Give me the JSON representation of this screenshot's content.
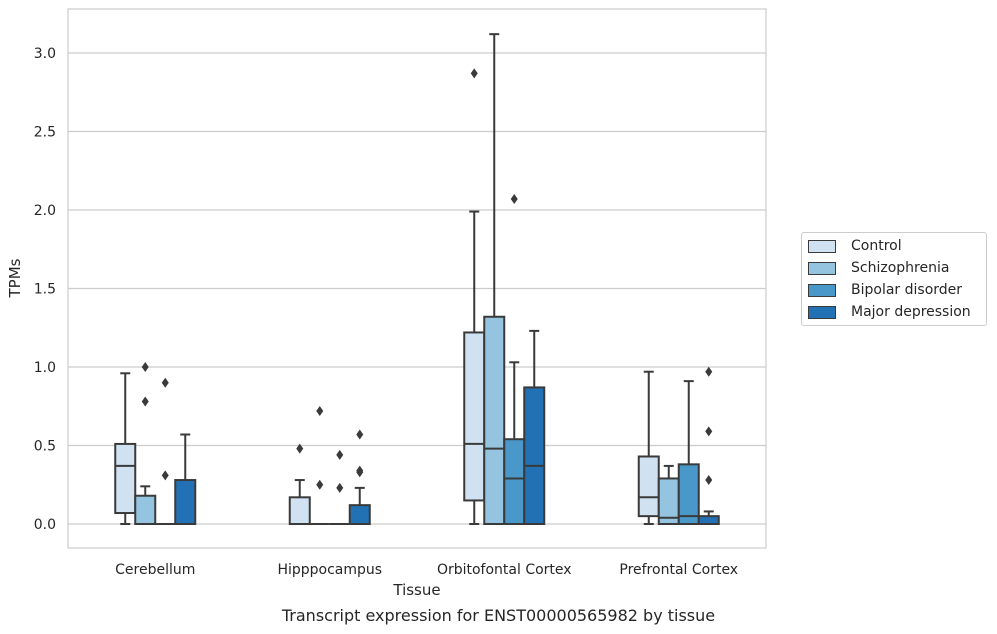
{
  "chart_data": {
    "type": "box",
    "title": "Transcript expression for ENST00000565982 by tissue",
    "xlabel": "Tissue",
    "ylabel": "TPMs",
    "ylim": [
      -0.15,
      3.3
    ],
    "yticks": [
      "0.0",
      "0.5",
      "1.0",
      "1.5",
      "2.0",
      "2.5",
      "3.0"
    ],
    "grid": true,
    "legend_position": "right",
    "categories": [
      "Cerebellum",
      "Hipppocampus",
      "Orbitofontal Cortex",
      "Prefrontal Cortex"
    ],
    "series": [
      {
        "name": "Control",
        "color": "#d0e1f2",
        "boxes": [
          {
            "whislo": 0.0,
            "q1": 0.07,
            "med": 0.37,
            "q3": 0.51,
            "whishi": 0.96,
            "fliers": []
          },
          {
            "whislo": 0.0,
            "q1": 0.0,
            "med": 0.0,
            "q3": 0.17,
            "whishi": 0.28,
            "fliers": [
              0.48
            ]
          },
          {
            "whislo": 0.0,
            "q1": 0.15,
            "med": 0.51,
            "q3": 1.22,
            "whishi": 1.99,
            "fliers": [
              2.87
            ]
          },
          {
            "whislo": 0.0,
            "q1": 0.05,
            "med": 0.17,
            "q3": 0.43,
            "whishi": 0.97,
            "fliers": []
          }
        ]
      },
      {
        "name": "Schizophrenia",
        "color": "#94c4df",
        "boxes": [
          {
            "whislo": 0.0,
            "q1": 0.0,
            "med": 0.0,
            "q3": 0.18,
            "whishi": 0.24,
            "fliers": [
              0.78,
              1.0
            ]
          },
          {
            "whislo": 0.0,
            "q1": 0.0,
            "med": 0.0,
            "q3": 0.0,
            "whishi": 0.0,
            "fliers": [
              0.25,
              0.72
            ]
          },
          {
            "whislo": 0.0,
            "q1": 0.0,
            "med": 0.48,
            "q3": 1.32,
            "whishi": 3.12,
            "fliers": []
          },
          {
            "whislo": 0.0,
            "q1": 0.0,
            "med": 0.04,
            "q3": 0.29,
            "whishi": 0.37,
            "fliers": []
          }
        ]
      },
      {
        "name": "Bipolar disorder",
        "color": "#4a98c9",
        "boxes": [
          {
            "whislo": 0.0,
            "q1": 0.0,
            "med": 0.0,
            "q3": 0.0,
            "whishi": 0.0,
            "fliers": [
              0.31,
              0.9
            ]
          },
          {
            "whislo": 0.0,
            "q1": 0.0,
            "med": 0.0,
            "q3": 0.0,
            "whishi": 0.0,
            "fliers": [
              0.23,
              0.44
            ]
          },
          {
            "whislo": 0.0,
            "q1": 0.0,
            "med": 0.29,
            "q3": 0.54,
            "whishi": 1.03,
            "fliers": [
              2.07
            ]
          },
          {
            "whislo": 0.0,
            "q1": 0.0,
            "med": 0.05,
            "q3": 0.38,
            "whishi": 0.91,
            "fliers": []
          }
        ]
      },
      {
        "name": "Major depression",
        "color": "#2271b5",
        "boxes": [
          {
            "whislo": 0.0,
            "q1": 0.0,
            "med": 0.0,
            "q3": 0.28,
            "whishi": 0.57,
            "fliers": []
          },
          {
            "whislo": 0.0,
            "q1": 0.0,
            "med": 0.0,
            "q3": 0.12,
            "whishi": 0.23,
            "fliers": [
              0.33,
              0.34,
              0.57
            ]
          },
          {
            "whislo": 0.0,
            "q1": 0.0,
            "med": 0.37,
            "q3": 0.87,
            "whishi": 1.23,
            "fliers": []
          },
          {
            "whislo": 0.0,
            "q1": 0.0,
            "med": 0.0,
            "q3": 0.05,
            "whishi": 0.08,
            "fliers": [
              0.28,
              0.59,
              0.97
            ]
          }
        ]
      }
    ]
  }
}
